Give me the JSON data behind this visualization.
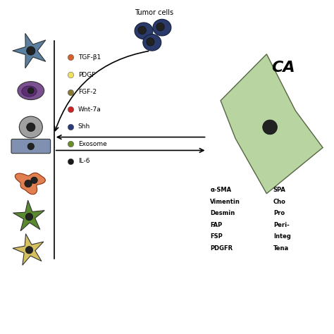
{
  "title": "",
  "tumor_cells_label": "Tumor cells",
  "caf_label": "CA",
  "legend_items": [
    {
      "label": "TGF-β1",
      "color": "#d4622a"
    },
    {
      "label": "PDGF",
      "color": "#f0e060"
    },
    {
      "label": "FGF-2",
      "color": "#8b7a30"
    },
    {
      "label": "Wnt-7a",
      "color": "#cc2222"
    },
    {
      "label": "Shh",
      "color": "#2a3a7a"
    },
    {
      "label": "Exosome",
      "color": "#6b8c2a"
    },
    {
      "label": "IL-6",
      "color": "#1a1a1a"
    }
  ],
  "markers_col1": [
    "α-SMA",
    "Vimentin",
    "Desmin",
    "FAP",
    "FSP",
    "PDGFR"
  ],
  "markers_col2": [
    "SPA",
    "Cho",
    "Pro",
    "Peri-",
    "Integ",
    "Tena"
  ],
  "bg_color": "#ffffff",
  "cell_colors": {
    "fibroblast_blue": "#5a7fa0",
    "mast_purple": "#7a5090",
    "round_gray": "#a0a0a0",
    "flat_blue": "#8090b0",
    "epithelial_orange": "#e08050",
    "stellate_green": "#5a8a30",
    "stellate_yellow": "#d4c060",
    "tumor_blue": "#2a3a6a",
    "caf_green": "#b8d4a0"
  }
}
